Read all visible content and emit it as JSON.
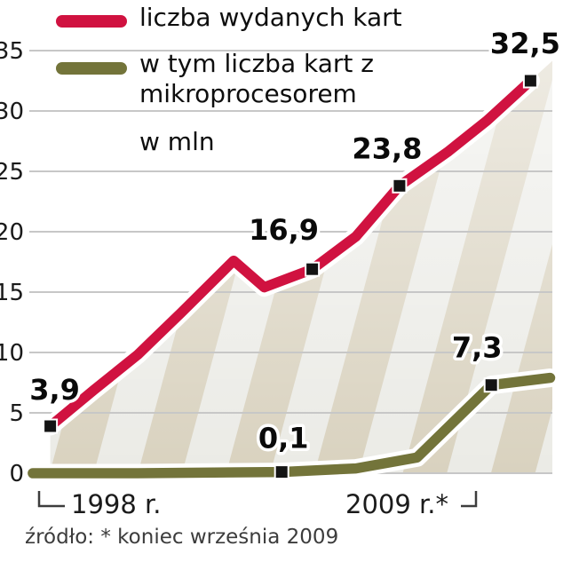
{
  "legend": {
    "unit": "w mln"
  },
  "footer": {
    "x_start": "1998 r.",
    "x_end": "2009 r.*",
    "source": "źródło: * koniec września 2009"
  },
  "chart_data": {
    "type": "line",
    "title": "",
    "unit": "w mln",
    "ylim": [
      0,
      35
    ],
    "yticks": [
      35,
      30,
      25,
      20,
      15,
      10,
      5,
      0
    ],
    "xlim": [
      1997.5,
      2009.5
    ],
    "grid": "horizontal",
    "legend_position": "top-left",
    "x_axis": {
      "start_label": "1998 r.",
      "end_label": "2009 r.*"
    },
    "area_stripes": {
      "color1": "#d9d2bf",
      "color2": "#ebebe6",
      "angle": 15,
      "width": 48
    },
    "series": [
      {
        "name": "liczba wydanych kart",
        "color": "#d01240",
        "area": true,
        "points": [
          [
            1998,
            3.9
          ],
          [
            1999,
            6.9
          ],
          [
            2000,
            9.8
          ],
          [
            2001,
            13.3
          ],
          [
            2002.2,
            17.6
          ],
          [
            2002.9,
            15.4
          ],
          [
            2004,
            16.9
          ],
          [
            2005,
            19.6
          ],
          [
            2006,
            23.8
          ],
          [
            2007.1,
            26.6
          ],
          [
            2008,
            29.2
          ],
          [
            2009,
            32.5
          ]
        ],
        "labels": [
          {
            "x": 1998,
            "y": 3.9,
            "text": "3,9",
            "dx": 5,
            "dy": -30
          },
          {
            "x": 2004,
            "y": 16.9,
            "text": "16,9",
            "dx": -32,
            "dy": -33
          },
          {
            "x": 2006,
            "y": 23.8,
            "text": "23,8",
            "dx": -14,
            "dy": -31
          },
          {
            "x": 2009,
            "y": 32.5,
            "text": "32,5",
            "dx": -6,
            "dy": -31
          }
        ]
      },
      {
        "name": "w tym liczba kart z mikroprocesorem",
        "color": "#73743a",
        "area": false,
        "points": [
          [
            1997.6,
            0.0
          ],
          [
            2000,
            0.0
          ],
          [
            2003.3,
            0.1
          ],
          [
            2005,
            0.4
          ],
          [
            2006.4,
            1.3
          ],
          [
            2008.1,
            7.3
          ],
          [
            2009.45,
            7.9
          ]
        ],
        "labels": [
          {
            "x": 2003.3,
            "y": 0.1,
            "text": "0,1",
            "dx": 2,
            "dy": -27
          },
          {
            "x": 2008.1,
            "y": 7.3,
            "text": "7,3",
            "dx": -16,
            "dy": -31
          }
        ]
      }
    ]
  }
}
